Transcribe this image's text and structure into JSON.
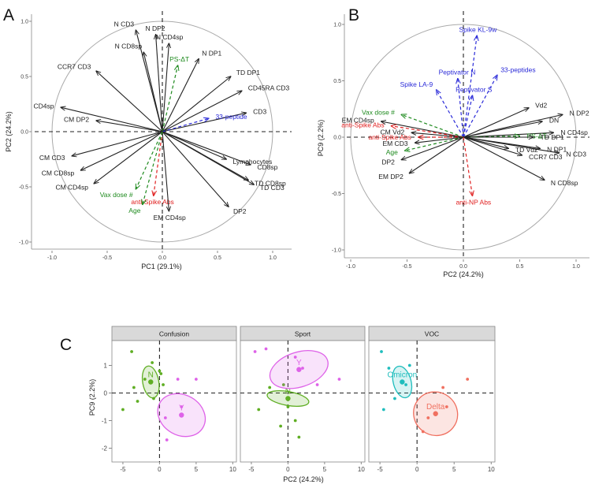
{
  "colors": {
    "black": "#222222",
    "green": "#1e8a1e",
    "red": "#e02020",
    "blue": "#2a2ad8",
    "pt_n": "#5fae23",
    "pt_y": "#de62e8",
    "pt_omicron": "#1fbdbd",
    "pt_delta": "#f07060",
    "strip_bg": "#d9d9d9",
    "panel_border": "#888888"
  },
  "chart_data": [
    {
      "type": "biplot",
      "panel_label": "A",
      "xlabel": "PC1 (29.1%)",
      "ylabel": "PC2 (24.2%)",
      "xlim": [
        -1.0,
        1.0
      ],
      "ylim": [
        -1.0,
        1.0
      ],
      "xticks": [
        "-1.0",
        "-0.5",
        "0.0",
        "0.5",
        "1.0"
      ],
      "yticks": [
        "-1.0",
        "-0.5",
        "0.0",
        "0.5",
        "1.0"
      ],
      "vectors": [
        {
          "label": "N CD3",
          "x": -0.24,
          "y": 0.92,
          "color": "black",
          "style": "solid"
        },
        {
          "label": "N DP2",
          "x": -0.06,
          "y": 0.88,
          "color": "black",
          "style": "solid"
        },
        {
          "label": "N CD4sp",
          "x": 0.06,
          "y": 0.8,
          "color": "black",
          "style": "solid"
        },
        {
          "label": "N CD8sp",
          "x": -0.17,
          "y": 0.72,
          "color": "black",
          "style": "solid"
        },
        {
          "label": "N DP1",
          "x": 0.33,
          "y": 0.66,
          "color": "black",
          "style": "solid"
        },
        {
          "label": "PS-ΔT",
          "x": 0.14,
          "y": 0.6,
          "color": "green",
          "style": "dashed"
        },
        {
          "label": "CCR7 CD3",
          "x": -0.6,
          "y": 0.55,
          "color": "black",
          "style": "solid"
        },
        {
          "label": "TD DP1",
          "x": 0.62,
          "y": 0.5,
          "color": "black",
          "style": "solid"
        },
        {
          "label": "CD45RA CD3",
          "x": 0.72,
          "y": 0.37,
          "color": "black",
          "style": "solid"
        },
        {
          "label": "CD4sp",
          "x": -0.92,
          "y": 0.22,
          "color": "black",
          "style": "solid"
        },
        {
          "label": "CD3",
          "x": 0.76,
          "y": 0.17,
          "color": "black",
          "style": "solid"
        },
        {
          "label": "CM DP2",
          "x": -0.6,
          "y": 0.1,
          "color": "black",
          "style": "solid"
        },
        {
          "label": "33-peptide",
          "x": 0.42,
          "y": 0.12,
          "color": "blue",
          "style": "dashed"
        },
        {
          "label": "CM CD3",
          "x": -0.82,
          "y": -0.22,
          "color": "black",
          "style": "solid"
        },
        {
          "label": "CM CD8sp",
          "x": -0.74,
          "y": -0.35,
          "color": "black",
          "style": "solid"
        },
        {
          "label": "Lymphocytes",
          "x": 0.58,
          "y": -0.25,
          "color": "black",
          "style": "solid"
        },
        {
          "label": "CD8sp",
          "x": 0.8,
          "y": -0.3,
          "color": "black",
          "style": "solid"
        },
        {
          "label": "TD CD8sp",
          "x": 0.78,
          "y": -0.44,
          "color": "black",
          "style": "solid"
        },
        {
          "label": "TD CD3",
          "x": 0.83,
          "y": -0.48,
          "color": "black",
          "style": "solid"
        },
        {
          "label": "CM CD4sp",
          "x": -0.62,
          "y": -0.47,
          "color": "black",
          "style": "solid"
        },
        {
          "label": "Vax dose #",
          "x": -0.24,
          "y": -0.52,
          "color": "green",
          "style": "dashed"
        },
        {
          "label": "anti-Spike Abs",
          "x": -0.08,
          "y": -0.58,
          "color": "red",
          "style": "dashed"
        },
        {
          "label": "EM CD4sp",
          "x": 0.06,
          "y": -0.72,
          "color": "black",
          "style": "solid"
        },
        {
          "label": "DP2",
          "x": 0.6,
          "y": -0.68,
          "color": "black",
          "style": "solid"
        },
        {
          "label": "Age",
          "x": -0.18,
          "y": -0.66,
          "color": "green",
          "style": "dashed"
        }
      ]
    },
    {
      "type": "biplot",
      "panel_label": "B",
      "xlabel": "PC2 (24.2%)",
      "ylabel": "PC9 (2.2%)",
      "xlim": [
        -1.0,
        1.0
      ],
      "ylim": [
        -1.0,
        1.0
      ],
      "xticks": [
        "-1.0",
        "-0.5",
        "0.0",
        "0.5",
        "1.0"
      ],
      "yticks": [
        "-1.0",
        "-0.5",
        "0.0",
        "0.5",
        "1.0"
      ],
      "vectors": [
        {
          "label": "Spike KL-9w",
          "x": 0.12,
          "y": 0.9,
          "color": "blue",
          "style": "dashed"
        },
        {
          "label": "Peptivator N",
          "x": -0.05,
          "y": 0.52,
          "color": "blue",
          "style": "dashed"
        },
        {
          "label": "33-peptides",
          "x": 0.3,
          "y": 0.55,
          "color": "blue",
          "style": "dashed"
        },
        {
          "label": "Spike LA-9",
          "x": -0.24,
          "y": 0.42,
          "color": "blue",
          "style": "dashed"
        },
        {
          "label": "Peptivator S",
          "x": 0.08,
          "y": 0.37,
          "color": "blue",
          "style": "dashed"
        },
        {
          "label": "Vd2",
          "x": 0.58,
          "y": 0.26,
          "color": "black",
          "style": "solid"
        },
        {
          "label": "N DP2",
          "x": 0.88,
          "y": 0.2,
          "color": "black",
          "style": "solid"
        },
        {
          "label": "DN",
          "x": 0.7,
          "y": 0.14,
          "color": "black",
          "style": "solid"
        },
        {
          "label": "Vax dose #",
          "x": -0.55,
          "y": 0.2,
          "color": "green",
          "style": "dashed"
        },
        {
          "label": "EM CD4sp",
          "x": -0.73,
          "y": 0.14,
          "color": "black",
          "style": "solid"
        },
        {
          "label": "anti-Spike Abs",
          "x": -0.64,
          "y": 0.1,
          "color": "red",
          "style": "dashed"
        },
        {
          "label": "N CD4sp",
          "x": 0.8,
          "y": 0.04,
          "color": "black",
          "style": "solid"
        },
        {
          "label": "CM Vd2",
          "x": -0.46,
          "y": 0.04,
          "color": "black",
          "style": "solid"
        },
        {
          "label": "PS-ΔT",
          "x": 0.5,
          "y": 0.01,
          "color": "green",
          "style": "dashed"
        },
        {
          "label": "TD DP1",
          "x": 0.62,
          "y": 0.0,
          "color": "black",
          "style": "solid"
        },
        {
          "label": "anti-Spike Abs",
          "x": -0.4,
          "y": 0.0,
          "color": "red",
          "style": "dashed"
        },
        {
          "label": "EM CD3",
          "x": -0.43,
          "y": -0.05,
          "color": "black",
          "style": "solid"
        },
        {
          "label": "Age",
          "x": -0.52,
          "y": -0.12,
          "color": "green",
          "style": "dashed"
        },
        {
          "label": "TD Vd2",
          "x": 0.4,
          "y": -0.1,
          "color": "black",
          "style": "solid"
        },
        {
          "label": "N DP1",
          "x": 0.68,
          "y": -0.1,
          "color": "black",
          "style": "solid"
        },
        {
          "label": "DP2",
          "x": -0.55,
          "y": -0.2,
          "color": "black",
          "style": "solid"
        },
        {
          "label": "CCR7 CD3",
          "x": 0.52,
          "y": -0.16,
          "color": "black",
          "style": "solid"
        },
        {
          "label": "N CD3",
          "x": 0.85,
          "y": -0.14,
          "color": "black",
          "style": "solid"
        },
        {
          "label": "EM DP2",
          "x": -0.48,
          "y": -0.32,
          "color": "black",
          "style": "solid"
        },
        {
          "label": "N CD8sp",
          "x": 0.72,
          "y": -0.38,
          "color": "black",
          "style": "solid"
        },
        {
          "label": "anti-NP Abs",
          "x": 0.08,
          "y": -0.52,
          "color": "red",
          "style": "dashed"
        }
      ]
    },
    {
      "type": "scatter",
      "panel_label": "C",
      "xlabel": "PC2 (24.2%)",
      "ylabel": "PC9 (2.2%)",
      "xlim": [
        -6.5,
        10.5
      ],
      "ylim": [
        -2.5,
        1.9
      ],
      "xticks": [
        -5,
        0,
        5,
        10
      ],
      "yticks": [
        1,
        0,
        -1,
        -2
      ],
      "facets": [
        {
          "title": "Confusion",
          "groups": [
            {
              "label": "N",
              "color": "pt_n",
              "center": [
                -1.2,
                0.4
              ],
              "ellipse": {
                "rx": 2.2,
                "ry": 0.65,
                "angle": -10
              },
              "points": [
                [
                  -5,
                  -0.6
                ],
                [
                  -3.8,
                  1.5
                ],
                [
                  -3,
                  -0.3
                ],
                [
                  -1,
                  1.1
                ],
                [
                  0.2,
                  0.7
                ],
                [
                  0.5,
                  0.3
                ],
                [
                  0,
                  0.8
                ],
                [
                  -0.8,
                  -0.2
                ],
                [
                  -2,
                  0.5
                ],
                [
                  -3.5,
                  0.2
                ]
              ]
            },
            {
              "label": "Y",
              "color": "pt_y",
              "center": [
                3,
                -0.8
              ],
              "ellipse": {
                "rx": 5.5,
                "ry": 1.0,
                "angle": -60
              },
              "points": [
                [
                  2.5,
                  0.5
                ],
                [
                  5,
                  0.5
                ],
                [
                  1,
                  -1.7
                ],
                [
                  0.8,
                  -0.9
                ],
                [
                  3,
                  -0.5
                ]
              ]
            }
          ]
        },
        {
          "title": "Sport",
          "groups": [
            {
              "label": "N",
              "color": "pt_n",
              "center": [
                0,
                -0.2
              ],
              "ellipse": {
                "rx": 1.9,
                "ry": 0.85,
                "angle": -80
              },
              "points": [
                [
                  -4,
                  -0.6
                ],
                [
                  -2.5,
                  0.2
                ],
                [
                  -1,
                  -1.2
                ],
                [
                  1,
                  -1
                ],
                [
                  1.5,
                  -1.6
                ],
                [
                  0,
                  -0.5
                ],
                [
                  -0.6,
                  0.3
                ]
              ]
            },
            {
              "label": "Y",
              "color": "pt_y",
              "center": [
                1.5,
                0.85
              ],
              "ellipse": {
                "rx": 8.2,
                "ry": 0.7,
                "angle": -18
              },
              "points": [
                [
                  -4.5,
                  1.5
                ],
                [
                  -3,
                  1.6
                ],
                [
                  1,
                  1.3
                ],
                [
                  2,
                  0.9
                ],
                [
                  4,
                  0.3
                ],
                [
                  7,
                  0.5
                ],
                [
                  1.5,
                  0.85
                ]
              ]
            }
          ]
        },
        {
          "title": "VOC",
          "groups": [
            {
              "label": "Omicron",
              "color": "pt_omicron",
              "center": [
                -2,
                0.4
              ],
              "ellipse": {
                "rx": 2.4,
                "ry": 0.65,
                "angle": -15
              },
              "points": [
                [
                  -4.8,
                  1.5
                ],
                [
                  -3.8,
                  0.9
                ],
                [
                  -4.5,
                  -0.6
                ],
                [
                  -3,
                  -0.2
                ],
                [
                  -1.5,
                  0.3
                ],
                [
                  -1,
                  1
                ],
                [
                  -2,
                  0.4
                ]
              ]
            },
            {
              "label": "Delta",
              "color": "pt_delta",
              "center": [
                2.5,
                -0.75
              ],
              "ellipse": {
                "rx": 5.8,
                "ry": 0.9,
                "angle": -52
              },
              "points": [
                [
                  1.5,
                  -0.9
                ],
                [
                  0.8,
                  -1.4
                ],
                [
                  2.5,
                  -0.75
                ],
                [
                  3.5,
                  0.2
                ],
                [
                  6.8,
                  0.5
                ],
                [
                  4,
                  -0.5
                ]
              ]
            }
          ]
        }
      ]
    }
  ]
}
